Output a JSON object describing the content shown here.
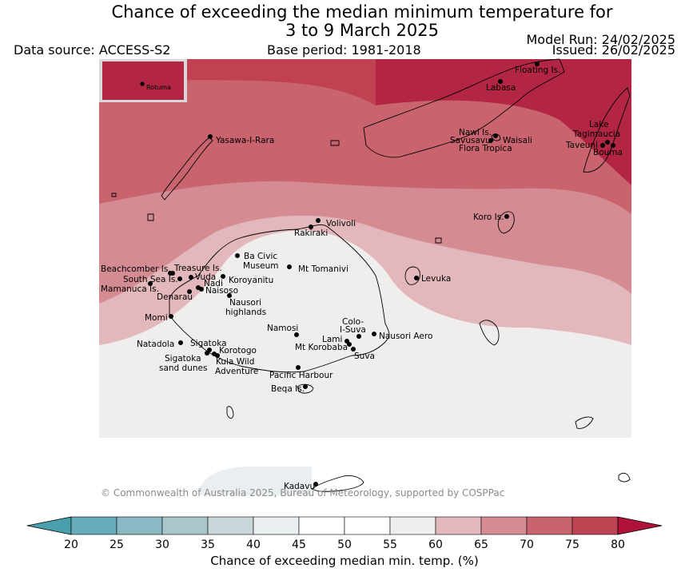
{
  "title": {
    "line1": "Chance of exceeding the median minimum temperature for",
    "line2": "3 to 9 March 2025"
  },
  "header": {
    "data_source": "Data source: ACCESS-S2",
    "base_period": "Base period: 1981-2018",
    "model_run": "Model Run: 24/02/2025",
    "issued": "Issued: 26/02/2025"
  },
  "inset_label": "Rotuma",
  "places": [
    {
      "name": "Floating Is."
    },
    {
      "name": "Labasa"
    },
    {
      "name": "Yasawa-I-Rara"
    },
    {
      "name": "Nawi Is."
    },
    {
      "name": "Savusavu"
    },
    {
      "name": "Waisali"
    },
    {
      "name": "Flora Tropica"
    },
    {
      "name": "Lake"
    },
    {
      "name": "Tagimaucia"
    },
    {
      "name": "Taveuni"
    },
    {
      "name": "Bouma"
    },
    {
      "name": "Koro Is."
    },
    {
      "name": "Volivoli"
    },
    {
      "name": "Rakiraki"
    },
    {
      "name": "Ba Civic"
    },
    {
      "name": "Museum"
    },
    {
      "name": "Mt Tomanivi"
    },
    {
      "name": "Beachcomber Is."
    },
    {
      "name": "Treasure Is."
    },
    {
      "name": "South Sea Is."
    },
    {
      "name": "Vuda"
    },
    {
      "name": "Koroyanitu"
    },
    {
      "name": "Nadi"
    },
    {
      "name": "Mamanuca Is."
    },
    {
      "name": "Naisoso"
    },
    {
      "name": "Denarau"
    },
    {
      "name": "Nausori"
    },
    {
      "name": "highlands"
    },
    {
      "name": "Levuka"
    },
    {
      "name": "Momi"
    },
    {
      "name": "Colo-"
    },
    {
      "name": "I-Suva"
    },
    {
      "name": "Namosi"
    },
    {
      "name": "Nausori Aero"
    },
    {
      "name": "Lami"
    },
    {
      "name": "Natadola"
    },
    {
      "name": "Sigatoka"
    },
    {
      "name": "Mt Korobaba"
    },
    {
      "name": "Korotogo"
    },
    {
      "name": "Suva"
    },
    {
      "name": "Sigatoka"
    },
    {
      "name": "Kula Wild"
    },
    {
      "name": "sand dunes"
    },
    {
      "name": "Adventure"
    },
    {
      "name": "Pacific Harbour"
    },
    {
      "name": "Beqa Is."
    },
    {
      "name": "Kadavu"
    }
  ],
  "credit": "© Commonwealth of Australia 2025, Bureau of Meteorology, supported by COSPPac",
  "legend": {
    "label": "Chance of exceeding median min. temp. (%)",
    "ticks": [
      "20",
      "25",
      "30",
      "35",
      "40",
      "45",
      "50",
      "55",
      "60",
      "65",
      "70",
      "75",
      "80"
    ],
    "colors": [
      "#67aab9",
      "#8ab8c4",
      "#a9c6cc",
      "#c9d6da",
      "#e9eff1",
      "#ffffff",
      "#ffffff",
      "#efeeec",
      "#e3b8bd",
      "#d58b92",
      "#c9646e",
      "#bd4351"
    ],
    "low_extend_color": "#4a9fad",
    "high_extend_color": "#b0133a"
  },
  "zones": {
    "c80": "#b22644",
    "c75": "#c0414f",
    "c70": "#c9646e",
    "c65": "#d58b92",
    "c60": "#e3b8bd",
    "c55": "#efeeec",
    "c40": "#e9eff1"
  }
}
